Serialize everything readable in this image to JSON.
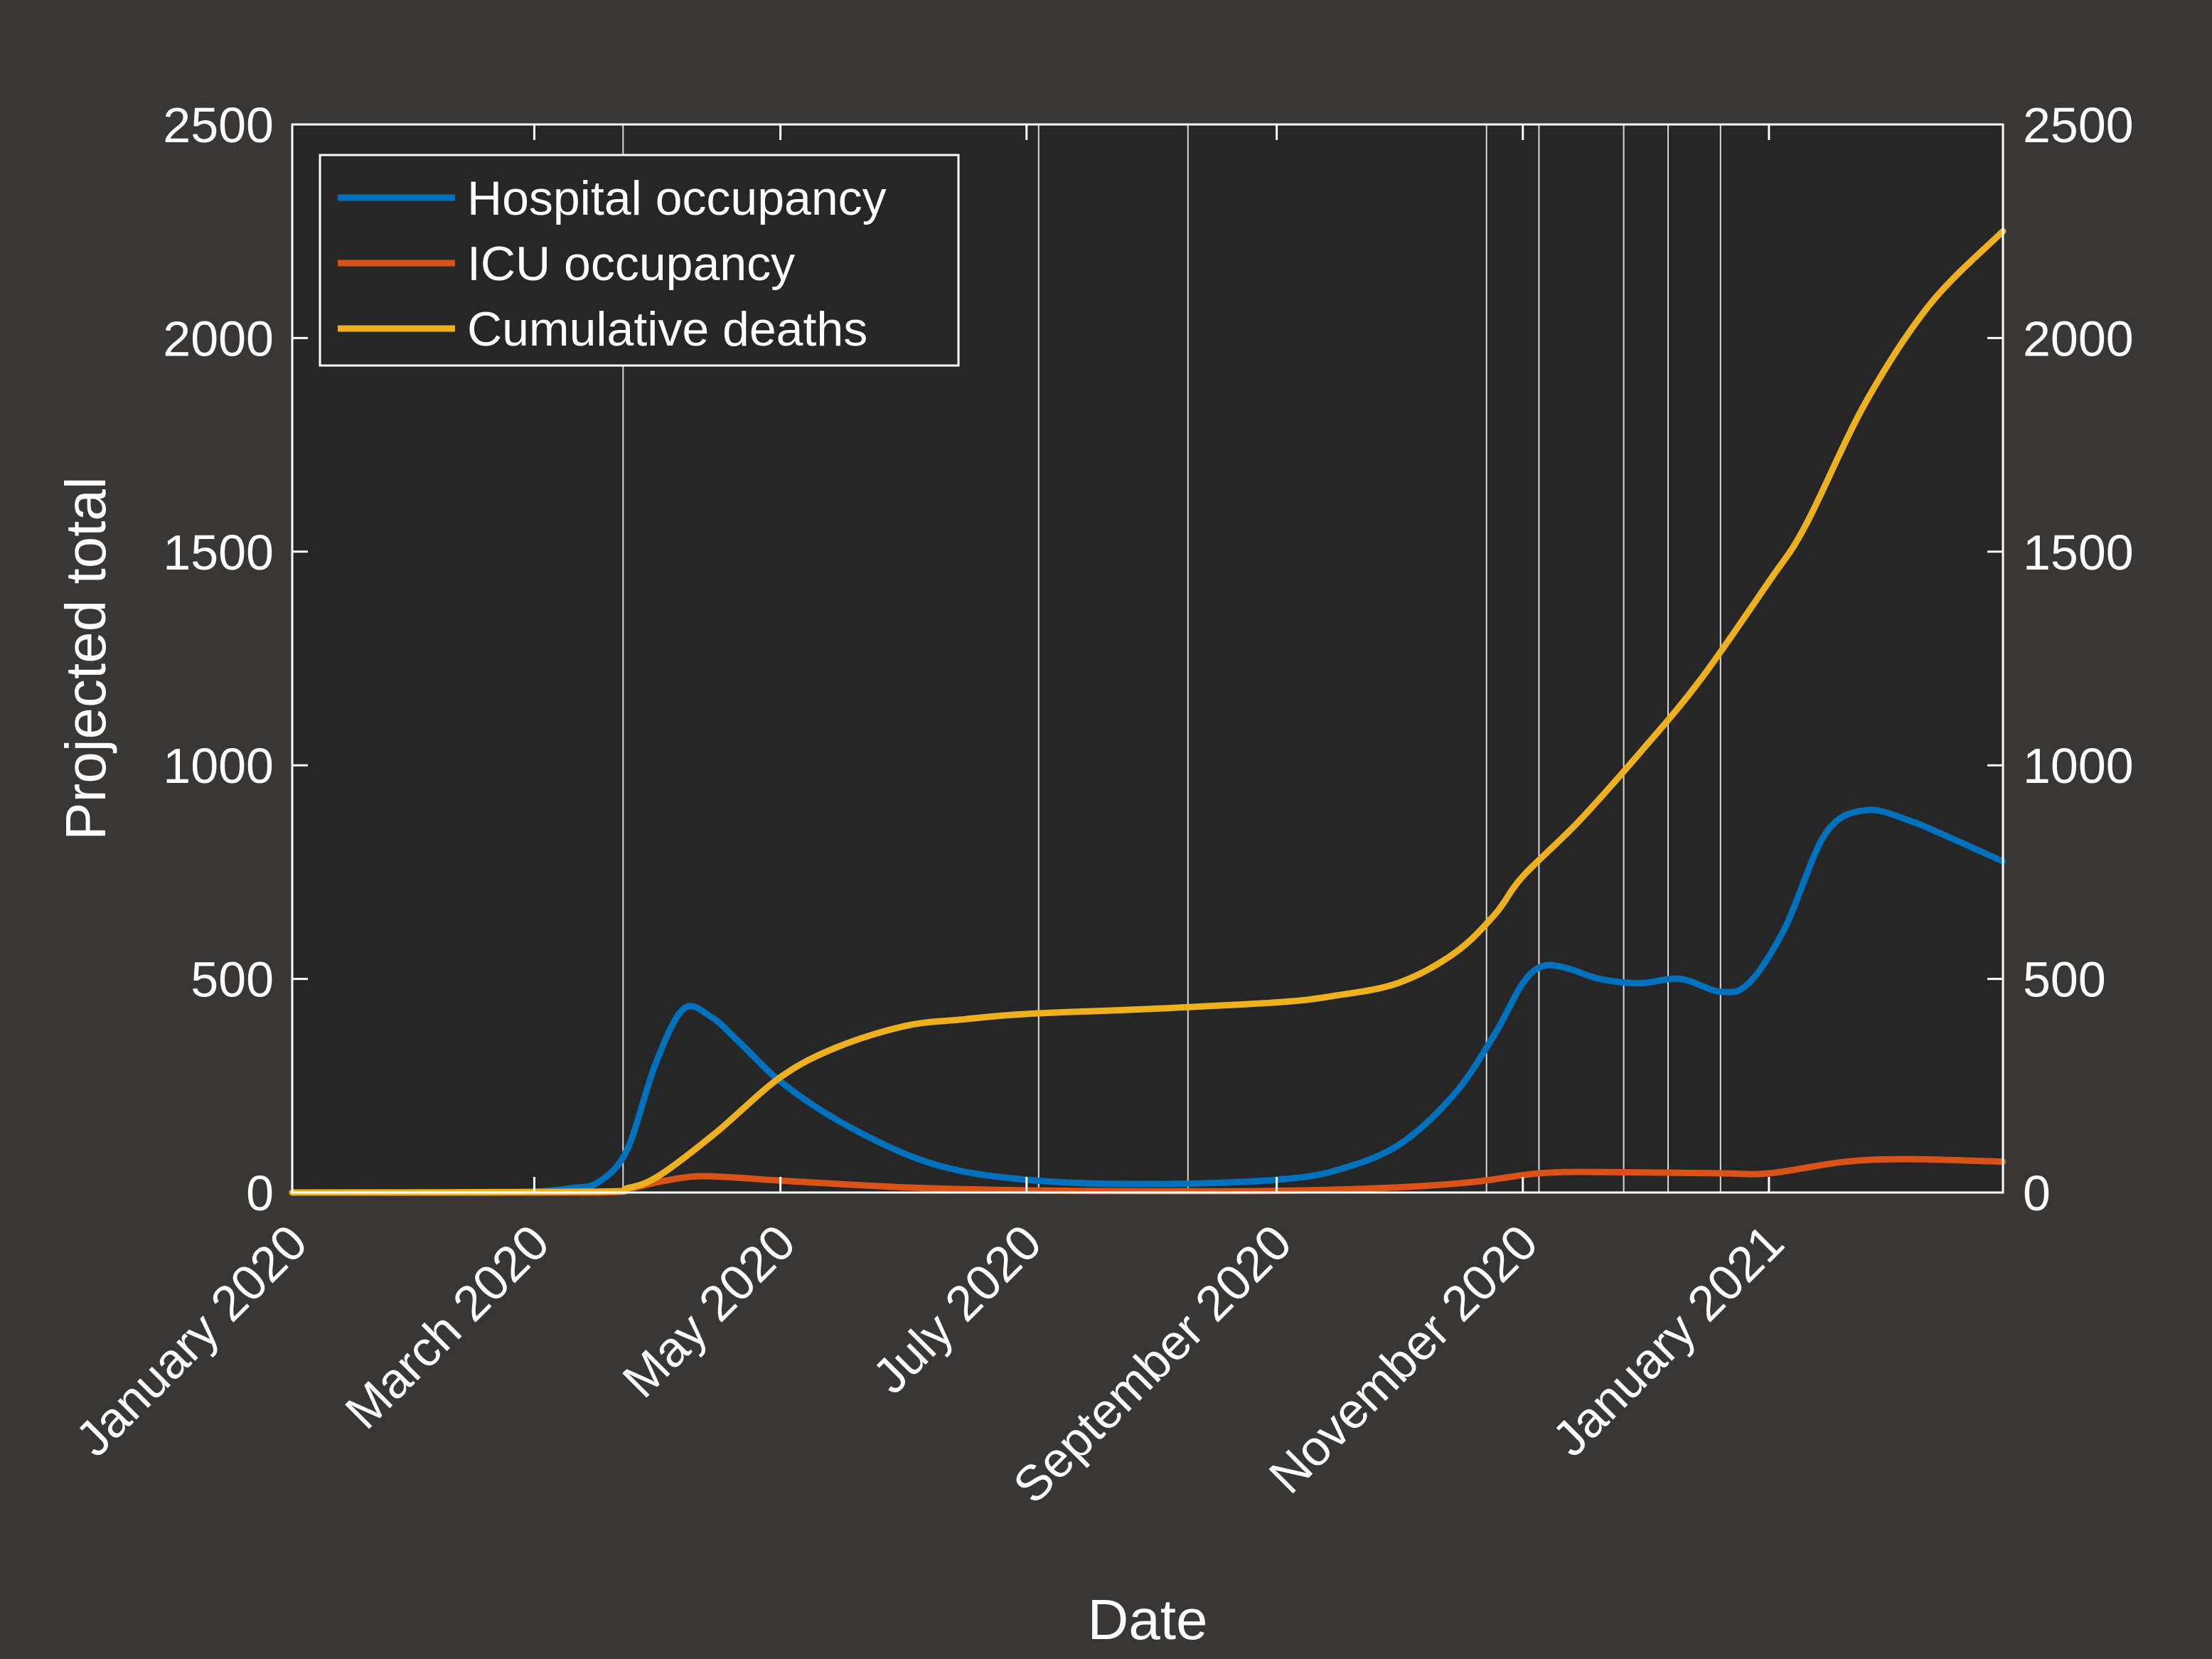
{
  "chart_data": {
    "type": "line",
    "xlabel": "Date",
    "ylabel": "Projected total",
    "x_axis_type": "date",
    "xlim": [
      "2020-01-01",
      "2021-02-28"
    ],
    "ylim": [
      0,
      2500
    ],
    "y_ticks": [
      0,
      500,
      1000,
      1500,
      2000,
      2500
    ],
    "right_y_ticks": [
      0,
      500,
      1000,
      1500,
      2000,
      2500
    ],
    "x_ticks": [
      {
        "date": "2020-01-01",
        "label": "January 2020"
      },
      {
        "date": "2020-03-01",
        "label": "March 2020"
      },
      {
        "date": "2020-05-01",
        "label": "May 2020"
      },
      {
        "date": "2020-07-01",
        "label": "July 2020"
      },
      {
        "date": "2020-09-01",
        "label": "September 2020"
      },
      {
        "date": "2020-11-01",
        "label": "November 2020"
      },
      {
        "date": "2021-01-01",
        "label": "January 2021"
      }
    ],
    "event_lines": [
      "2020-03-23",
      "2020-07-04",
      "2020-08-10",
      "2020-10-23",
      "2020-11-05",
      "2020-11-26",
      "2020-12-07",
      "2020-12-20"
    ],
    "legend_position": "top-left",
    "grid": false,
    "background_color": "#383736",
    "plot_background_color": "#262626",
    "series": [
      {
        "name": "Hospital occupancy",
        "color": "#0072bd",
        "points": [
          [
            "2020-01-01",
            0
          ],
          [
            "2020-02-15",
            0
          ],
          [
            "2020-03-01",
            2
          ],
          [
            "2020-03-10",
            10
          ],
          [
            "2020-03-17",
            25
          ],
          [
            "2020-03-24",
            100
          ],
          [
            "2020-03-31",
            300
          ],
          [
            "2020-04-07",
            430
          ],
          [
            "2020-04-14",
            410
          ],
          [
            "2020-04-21",
            350
          ],
          [
            "2020-05-01",
            260
          ],
          [
            "2020-05-15",
            170
          ],
          [
            "2020-06-01",
            90
          ],
          [
            "2020-06-15",
            50
          ],
          [
            "2020-07-01",
            30
          ],
          [
            "2020-07-15",
            22
          ],
          [
            "2020-08-01",
            20
          ],
          [
            "2020-08-15",
            22
          ],
          [
            "2020-09-01",
            30
          ],
          [
            "2020-09-15",
            50
          ],
          [
            "2020-10-01",
            110
          ],
          [
            "2020-10-15",
            230
          ],
          [
            "2020-10-25",
            370
          ],
          [
            "2020-11-01",
            490
          ],
          [
            "2020-11-06",
            530
          ],
          [
            "2020-11-12",
            525
          ],
          [
            "2020-11-20",
            500
          ],
          [
            "2020-11-30",
            490
          ],
          [
            "2020-12-10",
            500
          ],
          [
            "2020-12-20",
            470
          ],
          [
            "2020-12-27",
            490
          ],
          [
            "2021-01-05",
            620
          ],
          [
            "2021-01-15",
            840
          ],
          [
            "2021-01-25",
            895
          ],
          [
            "2021-02-05",
            870
          ],
          [
            "2021-02-15",
            830
          ],
          [
            "2021-02-28",
            775
          ]
        ]
      },
      {
        "name": "ICU occupancy",
        "color": "#d95319",
        "points": [
          [
            "2020-01-01",
            0
          ],
          [
            "2020-03-15",
            0
          ],
          [
            "2020-03-24",
            8
          ],
          [
            "2020-04-01",
            25
          ],
          [
            "2020-04-10",
            38
          ],
          [
            "2020-04-20",
            35
          ],
          [
            "2020-05-01",
            28
          ],
          [
            "2020-06-01",
            12
          ],
          [
            "2020-07-01",
            5
          ],
          [
            "2020-08-01",
            3
          ],
          [
            "2020-09-01",
            4
          ],
          [
            "2020-10-01",
            12
          ],
          [
            "2020-10-20",
            25
          ],
          [
            "2020-11-05",
            45
          ],
          [
            "2020-11-20",
            48
          ],
          [
            "2020-12-20",
            45
          ],
          [
            "2021-01-01",
            45
          ],
          [
            "2021-01-20",
            72
          ],
          [
            "2021-02-05",
            78
          ],
          [
            "2021-02-28",
            72
          ]
        ]
      },
      {
        "name": "Cumulative deaths",
        "color": "#edb120",
        "points": [
          [
            "2020-01-01",
            0
          ],
          [
            "2020-03-15",
            2
          ],
          [
            "2020-03-24",
            10
          ],
          [
            "2020-04-01",
            40
          ],
          [
            "2020-04-15",
            140
          ],
          [
            "2020-05-01",
            270
          ],
          [
            "2020-05-15",
            340
          ],
          [
            "2020-06-01",
            390
          ],
          [
            "2020-06-15",
            405
          ],
          [
            "2020-07-01",
            418
          ],
          [
            "2020-08-01",
            430
          ],
          [
            "2020-09-01",
            445
          ],
          [
            "2020-09-15",
            460
          ],
          [
            "2020-10-01",
            490
          ],
          [
            "2020-10-15",
            560
          ],
          [
            "2020-10-25",
            650
          ],
          [
            "2020-11-01",
            740
          ],
          [
            "2020-11-15",
            870
          ],
          [
            "2020-12-01",
            1040
          ],
          [
            "2020-12-15",
            1200
          ],
          [
            "2021-01-01",
            1430
          ],
          [
            "2021-01-10",
            1560
          ],
          [
            "2021-01-25",
            1850
          ],
          [
            "2021-02-10",
            2080
          ],
          [
            "2021-02-28",
            2250
          ]
        ]
      }
    ]
  }
}
